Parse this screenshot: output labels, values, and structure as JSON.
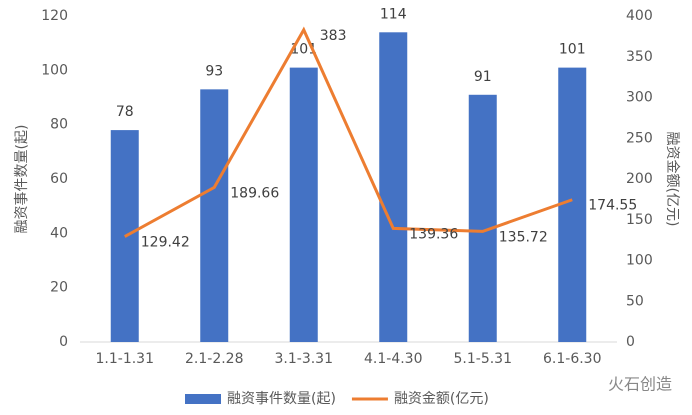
{
  "chart_data": {
    "type": "bar",
    "categories": [
      "1.1-1.31",
      "2.1-2.28",
      "3.1-3.31",
      "4.1-4.30",
      "5.1-5.31",
      "6.1-6.30"
    ],
    "series": [
      {
        "name": "融资事件数量(起)",
        "type": "bar",
        "color": "#4472c4",
        "values": [
          78,
          93,
          101,
          114,
          91,
          101
        ]
      },
      {
        "name": "融资金额(亿元)",
        "type": "line",
        "axis": "y2",
        "color": "#ed7d31",
        "values": [
          129.42,
          189.66,
          383,
          139.36,
          135.72,
          174.55
        ]
      }
    ],
    "ylabel": "融资事件数量(起)",
    "y2label": "融资金额(亿元)",
    "ylim": [
      0,
      120
    ],
    "yticks": [
      0,
      20,
      40,
      60,
      80,
      100,
      120
    ],
    "y2lim": [
      0,
      400
    ],
    "y2ticks": [
      0,
      50,
      100,
      150,
      200,
      250,
      300,
      350,
      400
    ],
    "grid": false,
    "legend": "bottom",
    "watermark": "火石创造"
  }
}
